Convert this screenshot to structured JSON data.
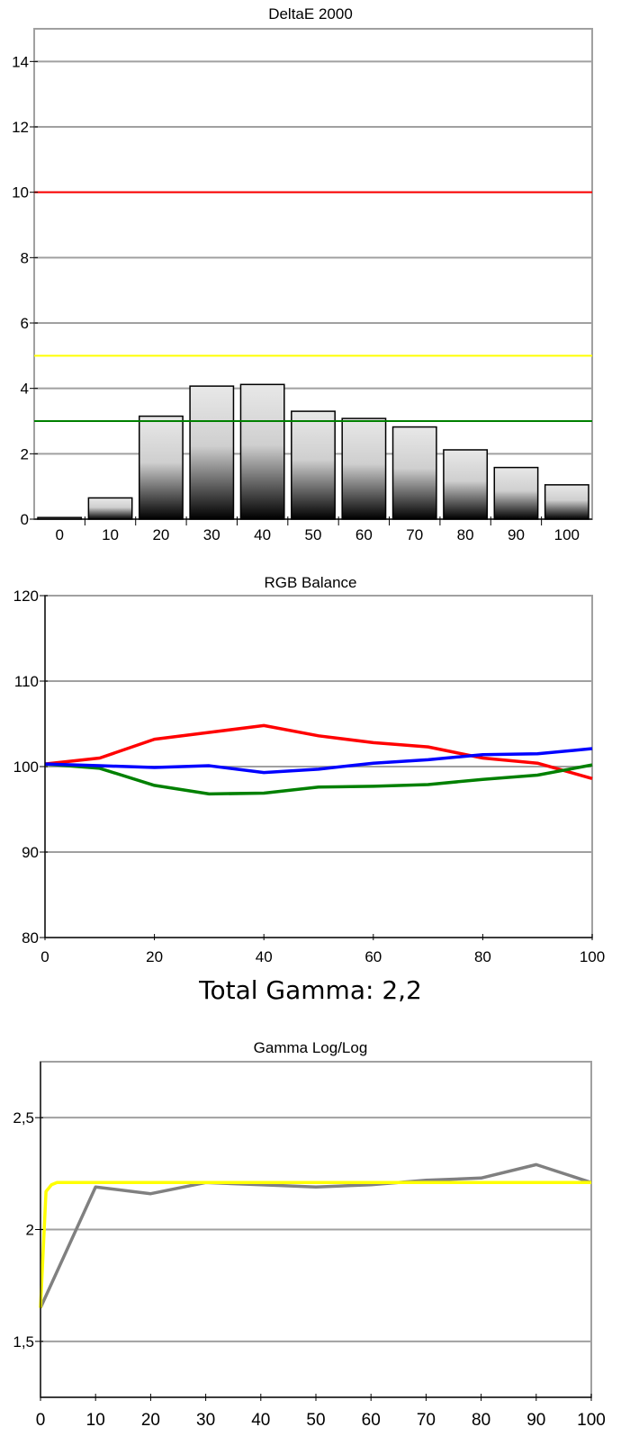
{
  "total_gamma_text": "Total Gamma: 2,2",
  "chart_data": [
    {
      "type": "bar",
      "title": "DeltaE 2000",
      "categories": [
        "0",
        "10",
        "20",
        "30",
        "40",
        "50",
        "60",
        "70",
        "80",
        "90",
        "100"
      ],
      "values": [
        0.05,
        0.65,
        3.15,
        4.07,
        4.12,
        3.3,
        3.08,
        2.82,
        2.12,
        1.58,
        1.05
      ],
      "ylim": [
        0,
        15
      ],
      "yticks": [
        0,
        2,
        4,
        6,
        8,
        10,
        12,
        14
      ],
      "ytick_labels": [
        "0",
        "2",
        "4",
        "6",
        "8",
        "10",
        "12",
        "14"
      ],
      "reference_lines": [
        {
          "y": 10,
          "color": "#ff0000"
        },
        {
          "y": 5,
          "color": "#ffff00"
        },
        {
          "y": 3,
          "color": "#008000"
        }
      ],
      "grid": true
    },
    {
      "type": "line",
      "title": "RGB Balance",
      "x": [
        0,
        10,
        20,
        30,
        40,
        50,
        60,
        70,
        80,
        90,
        100
      ],
      "xlim": [
        0,
        100
      ],
      "xticks": [
        0,
        20,
        40,
        60,
        80,
        100
      ],
      "xtick_labels": [
        "0",
        "20",
        "40",
        "60",
        "80",
        "100"
      ],
      "ylim": [
        80,
        120
      ],
      "yticks": [
        80,
        90,
        100,
        110,
        120
      ],
      "ytick_labels": [
        "80",
        "90",
        "100",
        "110",
        "120"
      ],
      "series": [
        {
          "color": "#ff0000",
          "values": [
            100.3,
            101.0,
            103.2,
            104.0,
            104.8,
            103.6,
            102.8,
            102.3,
            101.0,
            100.4,
            98.6
          ]
        },
        {
          "color": "#008000",
          "values": [
            100.3,
            99.8,
            97.8,
            96.8,
            96.9,
            97.6,
            97.7,
            97.9,
            98.5,
            99.0,
            100.2
          ]
        },
        {
          "color": "#0000ff",
          "values": [
            100.3,
            100.1,
            99.9,
            100.1,
            99.3,
            99.7,
            100.4,
            100.8,
            101.4,
            101.5,
            102.1
          ]
        }
      ],
      "grid": true
    },
    {
      "type": "line",
      "title": "Gamma Log/Log",
      "xlim": [
        0,
        100
      ],
      "xticks": [
        0,
        10,
        20,
        30,
        40,
        50,
        60,
        70,
        80,
        90,
        100
      ],
      "xtick_labels": [
        "0",
        "10",
        "20",
        "30",
        "40",
        "50",
        "60",
        "70",
        "80",
        "90",
        "100"
      ],
      "ylim": [
        1.25,
        2.75
      ],
      "yticks": [
        1.5,
        2,
        2.5
      ],
      "ytick_labels": [
        "1,5",
        "2",
        "2,5"
      ],
      "series": [
        {
          "color": "#808080",
          "x": [
            0,
            10,
            20,
            30,
            40,
            50,
            60,
            70,
            80,
            90,
            100
          ],
          "values": [
            1.65,
            2.19,
            2.16,
            2.21,
            2.2,
            2.19,
            2.2,
            2.22,
            2.23,
            2.29,
            2.21
          ]
        },
        {
          "color": "#ffff00",
          "x": [
            0,
            1,
            2,
            3,
            5,
            10,
            20,
            100
          ],
          "values": [
            1.65,
            2.17,
            2.2,
            2.21,
            2.21,
            2.21,
            2.21,
            2.21
          ]
        }
      ],
      "grid": true
    }
  ]
}
